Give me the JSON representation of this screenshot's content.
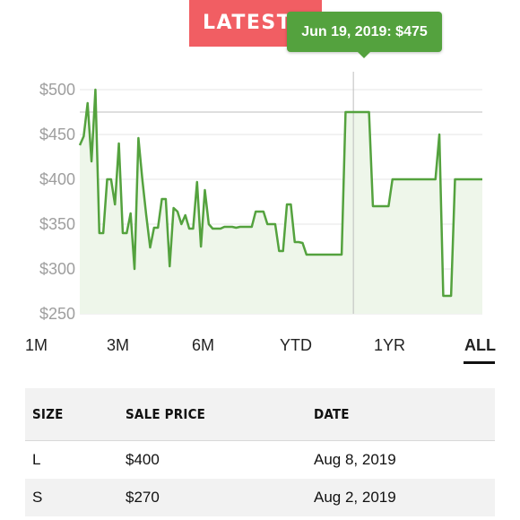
{
  "banner": {
    "label": "LATEST SALES"
  },
  "tooltip": {
    "text": "Jun 19, 2019: $475"
  },
  "tabs": [
    {
      "label": "1M",
      "active": false
    },
    {
      "label": "3M",
      "active": false
    },
    {
      "label": "6M",
      "active": false
    },
    {
      "label": "YTD",
      "active": false
    },
    {
      "label": "1YR",
      "active": false
    },
    {
      "label": "ALL",
      "active": true
    }
  ],
  "table": {
    "headers": [
      "SIZE",
      "SALE PRICE",
      "DATE"
    ],
    "rows": [
      [
        "L",
        "$400",
        "Aug 8, 2019"
      ],
      [
        "S",
        "$270",
        "Aug 2, 2019"
      ]
    ]
  },
  "colors": {
    "line": "#54a23e",
    "fill": "#eef6ea",
    "badge": "#f15e63",
    "tooltip": "#54a23e"
  },
  "chart_data": {
    "type": "area",
    "ylim": [
      250,
      500
    ],
    "yticks": [
      "$500",
      "$450",
      "$400",
      "$350",
      "$300",
      "$250"
    ],
    "highlight": {
      "label": "Jun 19, 2019",
      "value": 475
    },
    "values": [
      438,
      448,
      485,
      420,
      500,
      340,
      340,
      400,
      400,
      372,
      440,
      340,
      340,
      362,
      300,
      446,
      400,
      360,
      324,
      346,
      346,
      378,
      378,
      303,
      368,
      364,
      350,
      360,
      345,
      345,
      397,
      325,
      388,
      350,
      345,
      345,
      345,
      347,
      347,
      347,
      346,
      347,
      347,
      347,
      347,
      364,
      364,
      364,
      350,
      350,
      350,
      320,
      320,
      372,
      372,
      330,
      330,
      329,
      316,
      316,
      316,
      316,
      316,
      316,
      316,
      316,
      316,
      316,
      475,
      475,
      475,
      475,
      475,
      475,
      475,
      370,
      370,
      370,
      370,
      370,
      400,
      400,
      400,
      400,
      400,
      400,
      400,
      400,
      400,
      400,
      400,
      400,
      450,
      270,
      270,
      270,
      400,
      400,
      400,
      400,
      400,
      400,
      400,
      400
    ]
  }
}
